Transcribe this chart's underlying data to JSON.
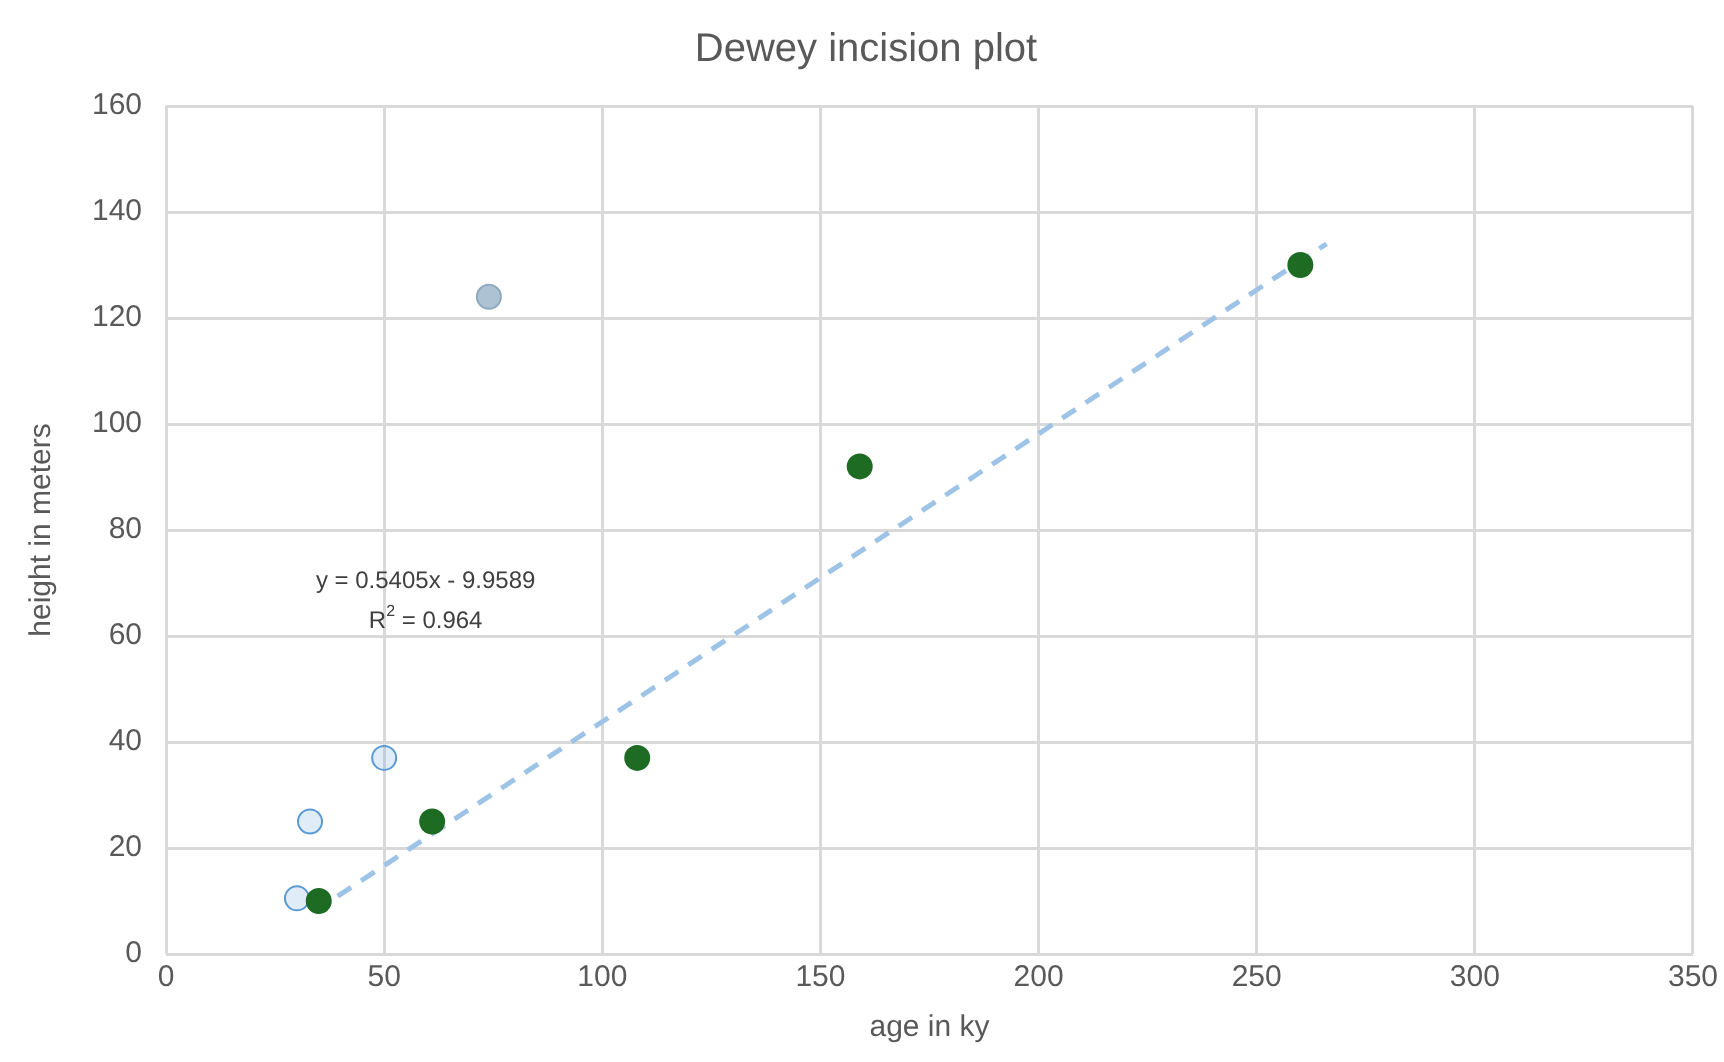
{
  "chart_data": {
    "type": "scatter",
    "title": "Dewey incision plot",
    "xlabel": "age in ky",
    "ylabel": "height in meters",
    "xlim": [
      0,
      350
    ],
    "xticks": [
      0,
      50,
      100,
      150,
      200,
      250,
      300,
      350
    ],
    "ylim": [
      0,
      160
    ],
    "yticks": [
      0,
      20,
      40,
      60,
      80,
      100,
      120,
      140,
      160
    ],
    "grid": true,
    "legend": false,
    "marker": "circle",
    "series": [
      {
        "type": "scatter",
        "color": "#1e6b23",
        "x": [
          35,
          61,
          108,
          159,
          260
        ],
        "values": [
          10,
          25,
          37,
          92,
          130
        ]
      },
      {
        "type": "scatter",
        "color": "#5b9bd5",
        "x": [
          30,
          33,
          50
        ],
        "values": [
          10.5,
          25,
          37
        ]
      },
      {
        "type": "scatter",
        "color": "#adc3d3",
        "x": [
          74
        ],
        "values": [
          124
        ]
      },
      {
        "type": "line",
        "color": "#9dc3e6",
        "line_style": "dashed",
        "marker": "none",
        "x": [
          34,
          266
        ],
        "values": [
          8,
          134
        ]
      }
    ],
    "annotations": [
      "y = 0.5405x - 9.9589",
      "R$^{2}$ = 0.964"
    ]
  }
}
